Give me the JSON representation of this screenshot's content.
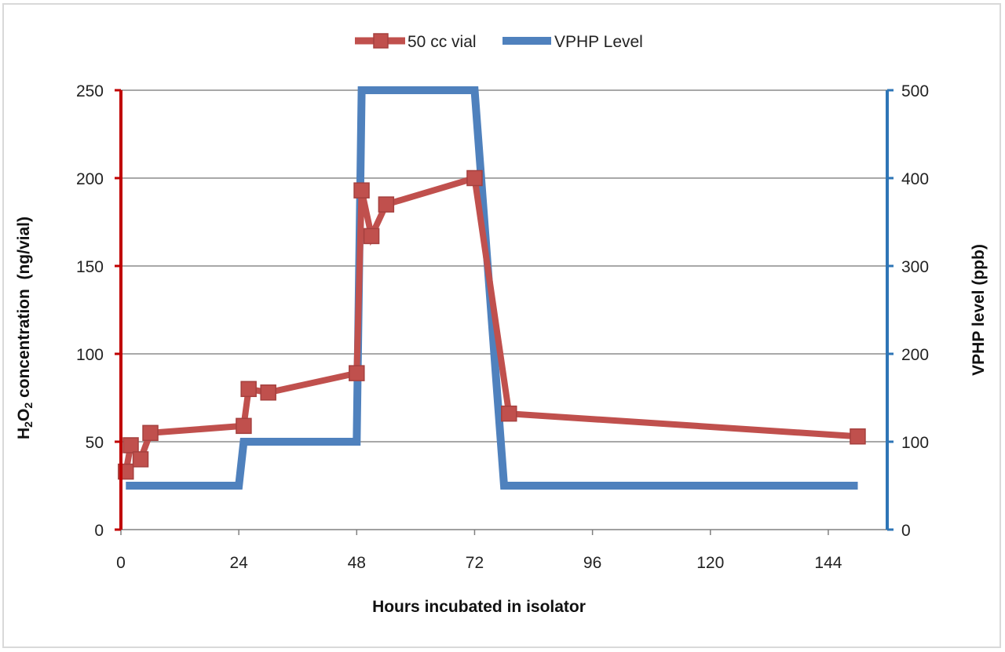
{
  "chart_data": {
    "type": "line",
    "xlabel": "Hours incubated in isolator",
    "ylabel_prefix": "H",
    "ylabel_sub1": "2",
    "ylabel_mid": "O",
    "ylabel_sub2": "2",
    "ylabel_suffix": " concentration  (ng/vial)",
    "y2label": "VPHP level (ppb)",
    "xlim": [
      0,
      156
    ],
    "x_ticks": [
      0,
      24,
      48,
      72,
      96,
      120,
      144
    ],
    "ylim": [
      0,
      250
    ],
    "y_ticks": [
      0,
      50,
      100,
      150,
      200,
      250
    ],
    "y2lim": [
      0,
      500
    ],
    "y2_ticks": [
      0,
      100,
      200,
      300,
      400,
      500
    ],
    "grid": true,
    "legend_position": "top-center",
    "series": [
      {
        "name": "50 cc vial",
        "axis": "left",
        "color": "#c0504d",
        "marker": "square",
        "points": [
          [
            1,
            33
          ],
          [
            2,
            48
          ],
          [
            4,
            40
          ],
          [
            6,
            55
          ],
          [
            25,
            59
          ],
          [
            26,
            80
          ],
          [
            30,
            78
          ],
          [
            48,
            89
          ],
          [
            49,
            193
          ],
          [
            51,
            167
          ],
          [
            54,
            185
          ],
          [
            72,
            200
          ],
          [
            79,
            66
          ],
          [
            150,
            53
          ]
        ]
      },
      {
        "name": "VPHP Level",
        "axis": "right",
        "color": "#4f81bd",
        "marker": "none",
        "points": [
          [
            1,
            50
          ],
          [
            24,
            50
          ],
          [
            25,
            100
          ],
          [
            48,
            100
          ],
          [
            49,
            500
          ],
          [
            72,
            500
          ],
          [
            78,
            50
          ],
          [
            150,
            50
          ]
        ]
      }
    ]
  }
}
